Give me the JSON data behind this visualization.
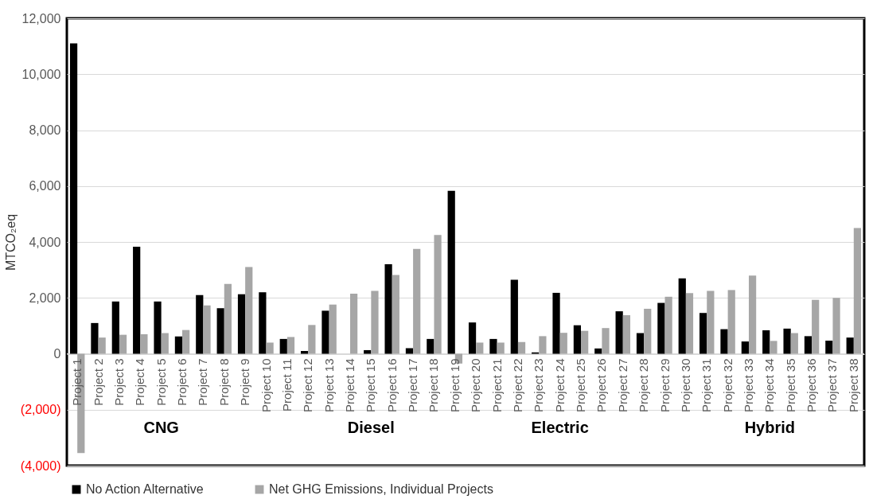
{
  "chart_data": {
    "type": "bar",
    "ylabel": "MTCO₂eq",
    "categories": [
      "Project 1",
      "Project 2",
      "Project 3",
      "Project 4",
      "Project 5",
      "Project 6",
      "Project 7",
      "Project 8",
      "Project 9",
      "Project 10",
      "Project 11",
      "Project 12",
      "Project 13",
      "Project 14",
      "Project 15",
      "Project 16",
      "Project 17",
      "Project 18",
      "Project 19",
      "Project 20",
      "Project 21",
      "Project 22",
      "Project 23",
      "Project 24",
      "Project 25",
      "Project 26",
      "Project 27",
      "Project 28",
      "Project 29",
      "Project 30",
      "Project 31",
      "Project 32",
      "Project 33",
      "Project 34",
      "Project 35",
      "Project 36",
      "Project 37",
      "Project 38"
    ],
    "series": [
      {
        "name": "No Action Alternative",
        "color": "#000000",
        "values": [
          11100,
          1100,
          1870,
          3830,
          1870,
          620,
          2100,
          1630,
          2130,
          2200,
          530,
          100,
          1540,
          0,
          130,
          3200,
          200,
          530,
          5830,
          1120,
          530,
          2650,
          50,
          2180,
          1020,
          190,
          1520,
          740,
          1820,
          2700,
          1460,
          880,
          440,
          840,
          900,
          630,
          470,
          580
        ]
      },
      {
        "name": "Net GHG Emissions, Individual Projects",
        "color": "#a6a6a6",
        "values": [
          -3550,
          580,
          680,
          700,
          740,
          850,
          1730,
          2500,
          3100,
          400,
          600,
          1030,
          1760,
          2150,
          2250,
          2820,
          3750,
          4250,
          -350,
          400,
          400,
          420,
          630,
          750,
          820,
          920,
          1380,
          1610,
          2040,
          2170,
          2250,
          2280,
          2800,
          460,
          740,
          1930,
          2000,
          4500
        ]
      }
    ],
    "ylim": [
      -4000,
      12000
    ],
    "yticks": [
      {
        "value": -4000,
        "label": "(4,000)"
      },
      {
        "value": -2000,
        "label": "(2,000)"
      },
      {
        "value": 0,
        "label": "0"
      },
      {
        "value": 2000,
        "label": "2,000"
      },
      {
        "value": 4000,
        "label": "4,000"
      },
      {
        "value": 6000,
        "label": "6,000"
      },
      {
        "value": 8000,
        "label": "8,000"
      },
      {
        "value": 10000,
        "label": "10,000"
      },
      {
        "value": 12000,
        "label": "12,000"
      }
    ],
    "annotations": [
      "CNG",
      "Diesel",
      "Electric",
      "Hybrid"
    ],
    "grid": "y",
    "legend": "bottom"
  }
}
